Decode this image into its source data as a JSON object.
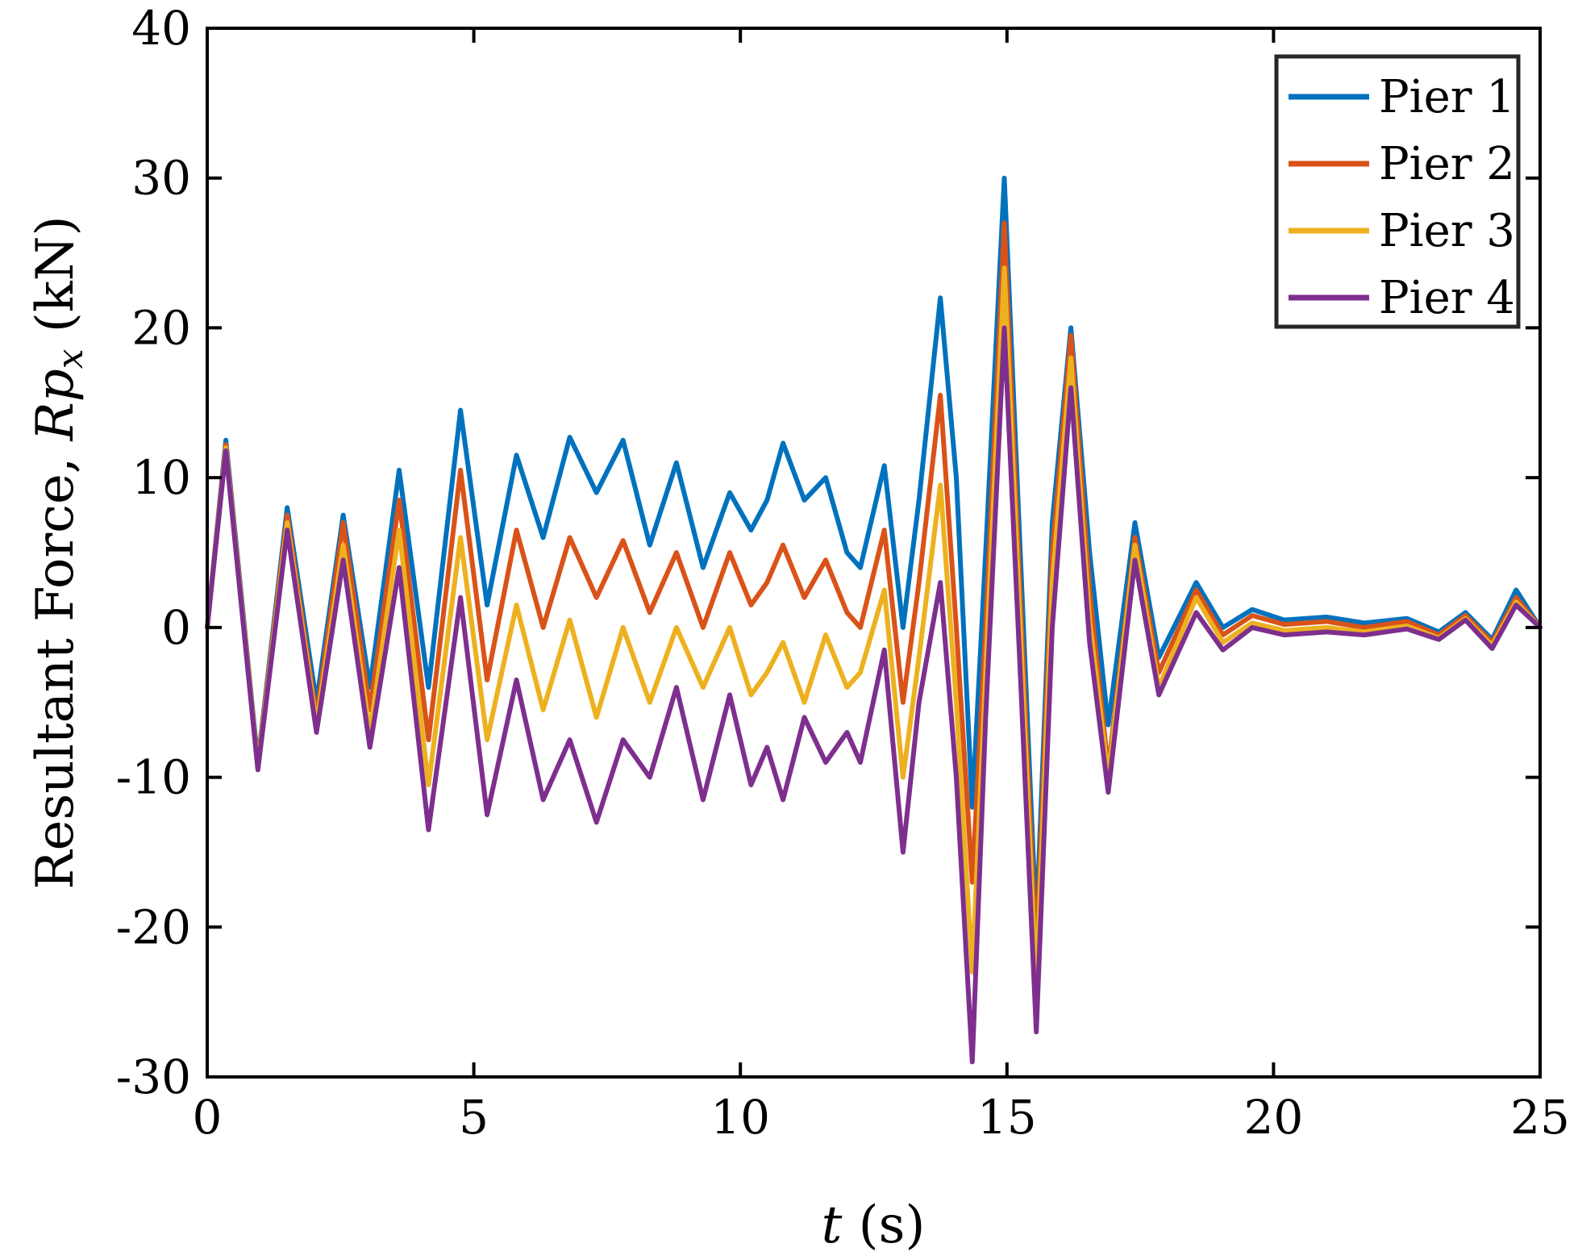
{
  "chart_data": {
    "type": "line",
    "title": "",
    "xlabel_var": "t",
    "xlabel_unit": " (s)",
    "ylabel_text": "Resultant Force, ",
    "ylabel_var": "Rp",
    "ylabel_sub": "x",
    "ylabel_unit": " (kN)",
    "xlim": [
      0,
      25
    ],
    "ylim": [
      -30,
      40
    ],
    "xticks": [
      0,
      5,
      10,
      15,
      20,
      25
    ],
    "yticks": [
      -30,
      -20,
      -10,
      0,
      10,
      20,
      30,
      40
    ],
    "grid": false,
    "legend_position": "top-right",
    "x": [
      0,
      0.35,
      0.95,
      1.5,
      2.05,
      2.55,
      3.05,
      3.6,
      4.15,
      4.75,
      5.25,
      5.8,
      6.3,
      6.8,
      7.3,
      7.8,
      8.3,
      8.8,
      9.3,
      9.8,
      10.2,
      10.5,
      10.8,
      11.2,
      11.6,
      12.0,
      12.25,
      12.7,
      13.05,
      13.35,
      13.75,
      14.05,
      14.35,
      14.6,
      14.95,
      15.25,
      15.55,
      15.85,
      16.2,
      16.55,
      16.9,
      17.4,
      17.85,
      18.55,
      19.05,
      19.6,
      20.2,
      21.0,
      21.7,
      22.5,
      23.1,
      23.6,
      24.1,
      24.55,
      25.0
    ],
    "series": [
      {
        "name": "Pier 1",
        "color": "#0072BD",
        "values": [
          0,
          12.5,
          -9.0,
          8.0,
          -5.0,
          7.5,
          -4.0,
          10.5,
          -4.0,
          14.5,
          1.5,
          11.5,
          6.0,
          12.7,
          9.0,
          12.5,
          5.5,
          11.0,
          4.0,
          9.0,
          6.5,
          8.5,
          12.3,
          8.5,
          10.0,
          5.0,
          4.0,
          10.8,
          0.0,
          8.5,
          22.0,
          10.0,
          -12.0,
          5.0,
          30.0,
          5.0,
          -20.0,
          7.0,
          20.0,
          5.0,
          -6.5,
          7.0,
          -2.0,
          3.0,
          0.0,
          1.2,
          0.5,
          0.7,
          0.3,
          0.6,
          -0.3,
          1.0,
          -0.8,
          2.5,
          0.0
        ]
      },
      {
        "name": "Pier 2",
        "color": "#D95319",
        "values": [
          0,
          12.2,
          -9.2,
          7.5,
          -6.0,
          7.0,
          -5.5,
          8.5,
          -7.5,
          10.5,
          -3.5,
          6.5,
          0.0,
          6.0,
          2.0,
          5.8,
          1.0,
          5.0,
          0.0,
          5.0,
          1.5,
          3.0,
          5.5,
          2.0,
          4.5,
          1.0,
          0.0,
          6.5,
          -5.0,
          3.0,
          15.5,
          0.0,
          -17.0,
          0.0,
          27.0,
          2.0,
          -22.0,
          5.0,
          19.5,
          2.5,
          -9.5,
          6.0,
          -3.0,
          2.5,
          -0.5,
          0.8,
          0.2,
          0.4,
          0.0,
          0.4,
          -0.5,
          0.8,
          -1.0,
          2.0,
          0.0
        ]
      },
      {
        "name": "Pier 3",
        "color": "#EDB120",
        "values": [
          0,
          12.0,
          -9.3,
          7.0,
          -6.5,
          5.5,
          -7.0,
          6.5,
          -10.5,
          6.0,
          -7.5,
          1.5,
          -5.5,
          0.5,
          -6.0,
          0.0,
          -5.0,
          0.0,
          -4.0,
          0.0,
          -4.5,
          -3.0,
          -1.0,
          -5.0,
          -0.5,
          -4.0,
          -3.0,
          2.5,
          -10.0,
          -2.0,
          9.5,
          -5.0,
          -23.0,
          -3.0,
          24.0,
          0.0,
          -24.0,
          3.0,
          18.0,
          0.5,
          -10.0,
          5.5,
          -4.0,
          2.0,
          -1.0,
          0.3,
          -0.2,
          0.0,
          -0.3,
          0.1,
          -0.7,
          0.6,
          -1.2,
          1.7,
          0.0
        ]
      },
      {
        "name": "Pier 4",
        "color": "#7E2F8E",
        "values": [
          0,
          11.8,
          -9.5,
          6.5,
          -7.0,
          4.5,
          -8.0,
          4.0,
          -13.5,
          2.0,
          -12.5,
          -3.5,
          -11.5,
          -7.5,
          -13.0,
          -7.5,
          -10.0,
          -4.0,
          -11.5,
          -4.5,
          -10.5,
          -8.0,
          -11.5,
          -6.0,
          -9.0,
          -7.0,
          -9.0,
          -1.5,
          -15.0,
          -5.0,
          3.0,
          -10.0,
          -29.0,
          -6.0,
          20.0,
          -3.0,
          -27.0,
          0.0,
          16.0,
          -1.0,
          -11.0,
          4.5,
          -4.5,
          1.0,
          -1.5,
          0.0,
          -0.5,
          -0.3,
          -0.5,
          -0.1,
          -0.8,
          0.5,
          -1.4,
          1.5,
          0.0
        ]
      }
    ]
  }
}
